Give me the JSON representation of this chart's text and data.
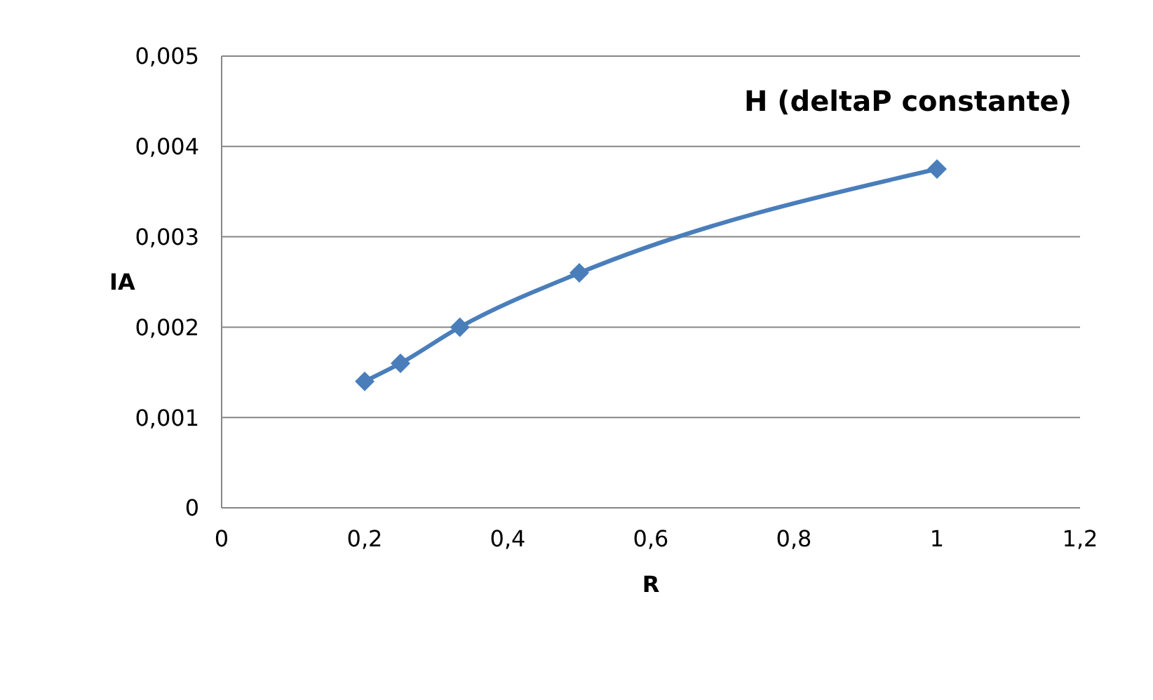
{
  "chart_data": {
    "type": "line",
    "title": "H (deltaP constante)",
    "xlabel": "R",
    "ylabel": "IA",
    "x": [
      0.2,
      0.25,
      0.333,
      0.5,
      1
    ],
    "series": [
      {
        "color": "#4a7ebb",
        "values": [
          0.0014,
          0.0016,
          0.002,
          0.0026,
          0.00375
        ]
      }
    ],
    "xlim": [
      0,
      1.2
    ],
    "xticks": [
      0,
      {
        "value": 0.2,
        "label": "0,2"
      },
      {
        "value": 0.4,
        "label": "0,4"
      },
      {
        "value": 0.6,
        "label": "0,6"
      },
      {
        "value": 0.8,
        "label": "0,8"
      },
      1,
      {
        "value": 1.2,
        "label": "1,2"
      }
    ],
    "ylim": [
      0,
      0.005
    ],
    "yticks": [
      0,
      {
        "value": 0.001,
        "label": "0,001"
      },
      {
        "value": 0.002,
        "label": "0,002"
      },
      {
        "value": 0.003,
        "label": "0,003"
      },
      {
        "value": 0.004,
        "label": "0,004"
      },
      {
        "value": 0.005,
        "label": "0,005"
      }
    ],
    "grid": "y",
    "marker": "diamond",
    "line_style": "solid"
  }
}
